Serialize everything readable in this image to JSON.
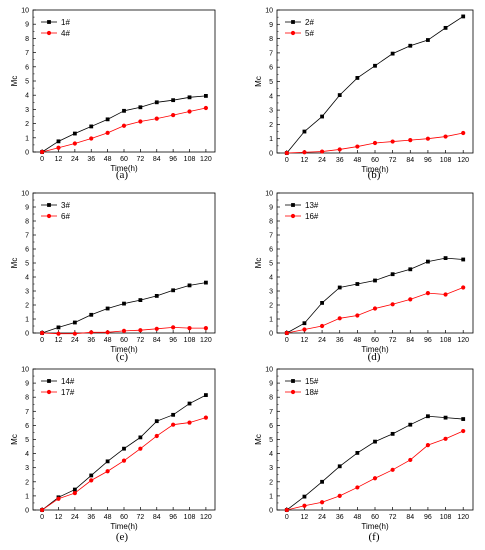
{
  "chart_data": [
    {
      "type": "line",
      "panel_label": "(a)",
      "xlabel": "Time(h)",
      "ylabel": "Mc",
      "x": [
        0,
        12,
        24,
        36,
        48,
        60,
        72,
        84,
        96,
        108,
        120
      ],
      "xticks": [
        "0",
        "12",
        "24",
        "36",
        "48",
        "60",
        "72",
        "84",
        "96",
        "108",
        "120"
      ],
      "ylim": [
        0,
        10
      ],
      "yticks": [
        "0",
        "1",
        "2",
        "3",
        "4",
        "5",
        "6",
        "7",
        "8",
        "9",
        "10"
      ],
      "legend_position": "top-left",
      "series": [
        {
          "name": "1#",
          "marker": "square",
          "color": "#000000",
          "values": [
            0,
            0.75,
            1.3,
            1.8,
            2.3,
            2.9,
            3.15,
            3.5,
            3.65,
            3.85,
            3.95
          ]
        },
        {
          "name": "4#",
          "marker": "circle",
          "color": "#ff0000",
          "values": [
            0,
            0.3,
            0.6,
            0.95,
            1.35,
            1.85,
            2.15,
            2.35,
            2.6,
            2.85,
            3.1
          ]
        }
      ]
    },
    {
      "type": "line",
      "panel_label": "(b)",
      "xlabel": "Time(h)",
      "ylabel": "Mc",
      "x": [
        0,
        12,
        24,
        36,
        48,
        60,
        72,
        84,
        96,
        108,
        120
      ],
      "xticks": [
        "0",
        "12",
        "24",
        "36",
        "48",
        "60",
        "72",
        "84",
        "96",
        "108",
        "120"
      ],
      "ylim": [
        0,
        10
      ],
      "yticks": [
        "0",
        "1",
        "2",
        "3",
        "4",
        "5",
        "6",
        "7",
        "8",
        "9",
        "10"
      ],
      "legend_position": "top-left",
      "series": [
        {
          "name": "2#",
          "marker": "square",
          "color": "#000000",
          "values": [
            0,
            1.5,
            2.55,
            4.05,
            5.25,
            6.1,
            6.95,
            7.5,
            7.9,
            8.75,
            9.55
          ]
        },
        {
          "name": "5#",
          "marker": "circle",
          "color": "#ff0000",
          "values": [
            0,
            0.05,
            0.1,
            0.25,
            0.45,
            0.7,
            0.8,
            0.9,
            1.0,
            1.15,
            1.4
          ]
        }
      ]
    },
    {
      "type": "line",
      "panel_label": "(c)",
      "xlabel": "Time(h)",
      "ylabel": "Mc",
      "x": [
        0,
        12,
        24,
        36,
        48,
        60,
        72,
        84,
        96,
        108,
        120
      ],
      "xticks": [
        "0",
        "12",
        "24",
        "36",
        "48",
        "60",
        "72",
        "84",
        "96",
        "108",
        "120"
      ],
      "ylim": [
        0,
        10
      ],
      "yticks": [
        "0",
        "1",
        "2",
        "3",
        "4",
        "5",
        "6",
        "7",
        "8",
        "9",
        "10"
      ],
      "legend_position": "top-left",
      "series": [
        {
          "name": "3#",
          "marker": "square",
          "color": "#000000",
          "values": [
            0,
            0.4,
            0.75,
            1.3,
            1.75,
            2.1,
            2.35,
            2.65,
            3.05,
            3.4,
            3.6
          ]
        },
        {
          "name": "6#",
          "marker": "circle",
          "color": "#ff0000",
          "values": [
            0,
            -0.05,
            -0.05,
            0.05,
            0.05,
            0.15,
            0.2,
            0.3,
            0.4,
            0.35,
            0.35
          ]
        }
      ]
    },
    {
      "type": "line",
      "panel_label": "(d)",
      "xlabel": "Time(h)",
      "ylabel": "Mc",
      "x": [
        0,
        12,
        24,
        36,
        48,
        60,
        72,
        84,
        96,
        108,
        120
      ],
      "xticks": [
        "0",
        "12",
        "24",
        "36",
        "48",
        "60",
        "72",
        "84",
        "96",
        "108",
        "120"
      ],
      "ylim": [
        0,
        10
      ],
      "yticks": [
        "0",
        "1",
        "2",
        "3",
        "4",
        "5",
        "6",
        "7",
        "8",
        "9",
        "10"
      ],
      "legend_position": "top-left",
      "series": [
        {
          "name": "13#",
          "marker": "square",
          "color": "#000000",
          "values": [
            0,
            0.7,
            2.15,
            3.25,
            3.5,
            3.75,
            4.2,
            4.55,
            5.1,
            5.35,
            5.25
          ]
        },
        {
          "name": "16#",
          "marker": "circle",
          "color": "#ff0000",
          "values": [
            0,
            0.25,
            0.5,
            1.05,
            1.25,
            1.75,
            2.05,
            2.4,
            2.85,
            2.75,
            3.25
          ]
        }
      ]
    },
    {
      "type": "line",
      "panel_label": "(e)",
      "xlabel": "Time(h)",
      "ylabel": "Mc",
      "x": [
        0,
        12,
        24,
        36,
        48,
        60,
        72,
        84,
        96,
        108,
        120
      ],
      "xticks": [
        "0",
        "12",
        "24",
        "36",
        "48",
        "60",
        "72",
        "84",
        "96",
        "108",
        "120"
      ],
      "ylim": [
        0,
        10
      ],
      "yticks": [
        "0",
        "1",
        "2",
        "3",
        "4",
        "5",
        "6",
        "7",
        "8",
        "9",
        "10"
      ],
      "legend_position": "top-left",
      "series": [
        {
          "name": "14#",
          "marker": "square",
          "color": "#000000",
          "values": [
            0,
            0.9,
            1.45,
            2.45,
            3.45,
            4.35,
            5.15,
            6.3,
            6.75,
            7.55,
            8.15
          ]
        },
        {
          "name": "17#",
          "marker": "circle",
          "color": "#ff0000",
          "values": [
            0,
            0.8,
            1.2,
            2.1,
            2.75,
            3.5,
            4.35,
            5.25,
            6.05,
            6.2,
            6.55
          ]
        }
      ]
    },
    {
      "type": "line",
      "panel_label": "(f)",
      "xlabel": "Time(h)",
      "ylabel": "Mc",
      "x": [
        0,
        12,
        24,
        36,
        48,
        60,
        72,
        84,
        96,
        108,
        120
      ],
      "xticks": [
        "0",
        "12",
        "24",
        "36",
        "48",
        "60",
        "72",
        "84",
        "96",
        "108",
        "120"
      ],
      "ylim": [
        0,
        10
      ],
      "yticks": [
        "0",
        "1",
        "2",
        "3",
        "4",
        "5",
        "6",
        "7",
        "8",
        "9",
        "10"
      ],
      "legend_position": "top-left",
      "series": [
        {
          "name": "15#",
          "marker": "square",
          "color": "#000000",
          "values": [
            0,
            0.95,
            2.0,
            3.1,
            4.05,
            4.85,
            5.4,
            6.05,
            6.65,
            6.55,
            6.45
          ]
        },
        {
          "name": "18#",
          "marker": "circle",
          "color": "#ff0000",
          "values": [
            0,
            0.3,
            0.55,
            1.0,
            1.6,
            2.25,
            2.85,
            3.55,
            4.6,
            5.05,
            5.6
          ]
        }
      ]
    }
  ]
}
